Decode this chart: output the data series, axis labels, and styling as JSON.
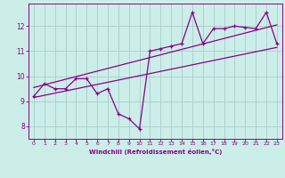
{
  "title": "",
  "xlabel": "Windchill (Refroidissement éolien,°C)",
  "bg_color": "#cceee8",
  "grid_color": "#aacccc",
  "line_color": "#880088",
  "xlim": [
    -0.5,
    23.5
  ],
  "ylim": [
    7.5,
    12.9
  ],
  "xticks": [
    0,
    1,
    2,
    3,
    4,
    5,
    6,
    7,
    8,
    9,
    10,
    11,
    12,
    13,
    14,
    15,
    16,
    17,
    18,
    19,
    20,
    21,
    22,
    23
  ],
  "yticks": [
    8,
    9,
    10,
    11,
    12
  ],
  "series1_x": [
    0,
    1,
    2,
    3,
    4,
    5,
    6,
    7,
    8,
    9,
    10,
    11,
    12,
    13,
    14,
    15,
    16,
    17,
    18,
    19,
    20,
    21,
    22,
    23
  ],
  "series1_y": [
    9.2,
    9.7,
    9.5,
    9.5,
    9.9,
    9.9,
    9.3,
    9.5,
    8.5,
    8.3,
    7.9,
    11.0,
    11.1,
    11.2,
    11.3,
    12.55,
    11.3,
    11.9,
    11.9,
    12.0,
    11.95,
    11.9,
    12.55,
    11.3
  ],
  "trend1_x": [
    0,
    23
  ],
  "trend1_y": [
    9.15,
    11.15
  ],
  "trend2_x": [
    0,
    23
  ],
  "trend2_y": [
    9.55,
    12.05
  ]
}
